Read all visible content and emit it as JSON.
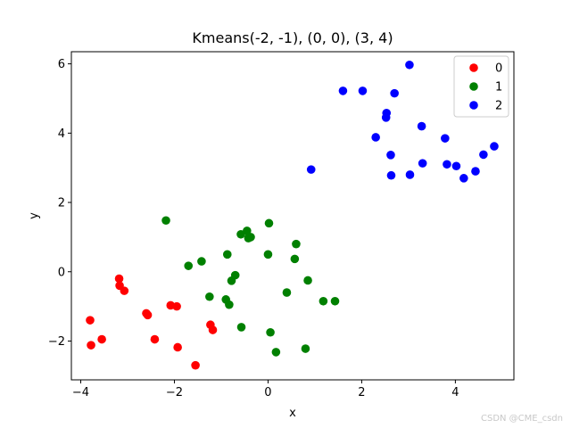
{
  "chart_data": {
    "type": "scatter",
    "title": "Kmeans(-2, -1), (0, 0), (3, 4)",
    "xlabel": "x",
    "ylabel": "y",
    "xlim": [
      -4.2,
      5.25
    ],
    "ylim": [
      -3.12,
      6.35
    ],
    "xticks": [
      -4,
      -2,
      0,
      2,
      4
    ],
    "yticks": [
      -2,
      0,
      2,
      4,
      6
    ],
    "grid": false,
    "legend_position": "top-right",
    "series": [
      {
        "name": "0",
        "color": "#ff0000",
        "points": [
          [
            -3.8,
            -1.4
          ],
          [
            -3.78,
            -2.12
          ],
          [
            -3.55,
            -1.95
          ],
          [
            -3.18,
            -0.2
          ],
          [
            -3.17,
            -0.4
          ],
          [
            -3.07,
            -0.55
          ],
          [
            -2.6,
            -1.2
          ],
          [
            -2.57,
            -1.25
          ],
          [
            -2.42,
            -1.95
          ],
          [
            -2.08,
            -0.97
          ],
          [
            -1.95,
            -1.0
          ],
          [
            -1.93,
            -2.18
          ],
          [
            -1.55,
            -2.7
          ],
          [
            -1.23,
            -1.53
          ],
          [
            -1.18,
            -1.68
          ]
        ]
      },
      {
        "name": "1",
        "color": "#008000",
        "points": [
          [
            -2.18,
            1.48
          ],
          [
            -1.7,
            0.17
          ],
          [
            -1.42,
            0.3
          ],
          [
            -1.25,
            -0.72
          ],
          [
            -0.9,
            -0.8
          ],
          [
            -0.87,
            0.5
          ],
          [
            -0.83,
            -0.95
          ],
          [
            -0.78,
            -0.26
          ],
          [
            -0.7,
            -0.1
          ],
          [
            -0.58,
            1.08
          ],
          [
            -0.57,
            -1.6
          ],
          [
            -0.45,
            1.18
          ],
          [
            -0.42,
            0.97
          ],
          [
            -0.37,
            1.0
          ],
          [
            0.0,
            0.5
          ],
          [
            0.02,
            1.4
          ],
          [
            0.05,
            -1.75
          ],
          [
            0.17,
            -2.32
          ],
          [
            0.4,
            -0.6
          ],
          [
            0.57,
            0.37
          ],
          [
            0.6,
            0.8
          ],
          [
            0.8,
            -2.22
          ],
          [
            0.85,
            -0.25
          ],
          [
            1.18,
            -0.85
          ],
          [
            1.43,
            -0.85
          ]
        ]
      },
      {
        "name": "2",
        "color": "#0000ff",
        "points": [
          [
            0.92,
            2.95
          ],
          [
            1.6,
            5.22
          ],
          [
            2.02,
            5.22
          ],
          [
            2.3,
            3.88
          ],
          [
            2.52,
            4.45
          ],
          [
            2.53,
            4.58
          ],
          [
            2.62,
            3.37
          ],
          [
            2.63,
            2.78
          ],
          [
            2.7,
            5.15
          ],
          [
            3.02,
            5.97
          ],
          [
            3.03,
            2.8
          ],
          [
            3.28,
            4.2
          ],
          [
            3.3,
            3.13
          ],
          [
            3.78,
            3.85
          ],
          [
            3.82,
            3.1
          ],
          [
            4.02,
            3.05
          ],
          [
            4.18,
            2.7
          ],
          [
            4.43,
            2.9
          ],
          [
            4.6,
            3.38
          ],
          [
            4.83,
            3.62
          ]
        ]
      }
    ]
  },
  "watermark": "CSDN @CME_csdn"
}
